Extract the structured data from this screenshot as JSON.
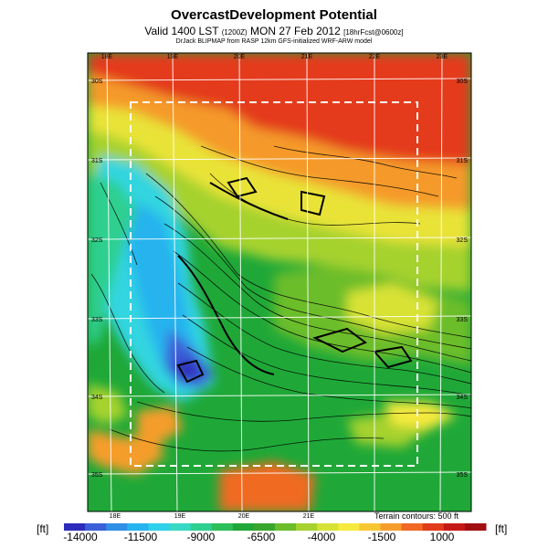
{
  "header": {
    "title": "OvercastDevelopment Potential",
    "valid_prefix": "Valid 1400 LST",
    "valid_utc": "(1200Z)",
    "valid_date": "MON 27 Feb 2012",
    "valid_forecast": "[18hrFcst@0600z]",
    "credit": "DrJack BLIPMAP from RASP 12km GFS-initialized WRF-ARW model"
  },
  "map": {
    "lon_labels_top": [
      "18E",
      "19E",
      "20E",
      "21E",
      "22E",
      "23E"
    ],
    "lon_labels_bottom": [
      "18E",
      "19E",
      "20E",
      "21E"
    ],
    "lat_labels_left": [
      "30S",
      "31S",
      "32S",
      "33S",
      "34S",
      "35S"
    ],
    "lat_labels_right": [
      "30S",
      "31S",
      "32S",
      "33S",
      "34S",
      "35S"
    ],
    "terrain_note": "Terrain contours: 500 ft"
  },
  "colorbar": {
    "unit_left": "[ft]",
    "unit_right": "[ft]",
    "tick_labels": [
      "-14000",
      "-11500",
      "-9000",
      "-6500",
      "-4000",
      "-1500",
      "1000"
    ],
    "colors": [
      "#2d2bbb",
      "#3a5fd8",
      "#2f8fe6",
      "#27b3ee",
      "#2ed0ea",
      "#36d9c4",
      "#2fcf8f",
      "#2cbf5a",
      "#1fa838",
      "#3aa52c",
      "#6cbd2b",
      "#a6d22e",
      "#d7e236",
      "#f6ea3c",
      "#f7c633",
      "#f59d2a",
      "#f06a23",
      "#e23b1c",
      "#c61a16",
      "#a10f12"
    ]
  }
}
